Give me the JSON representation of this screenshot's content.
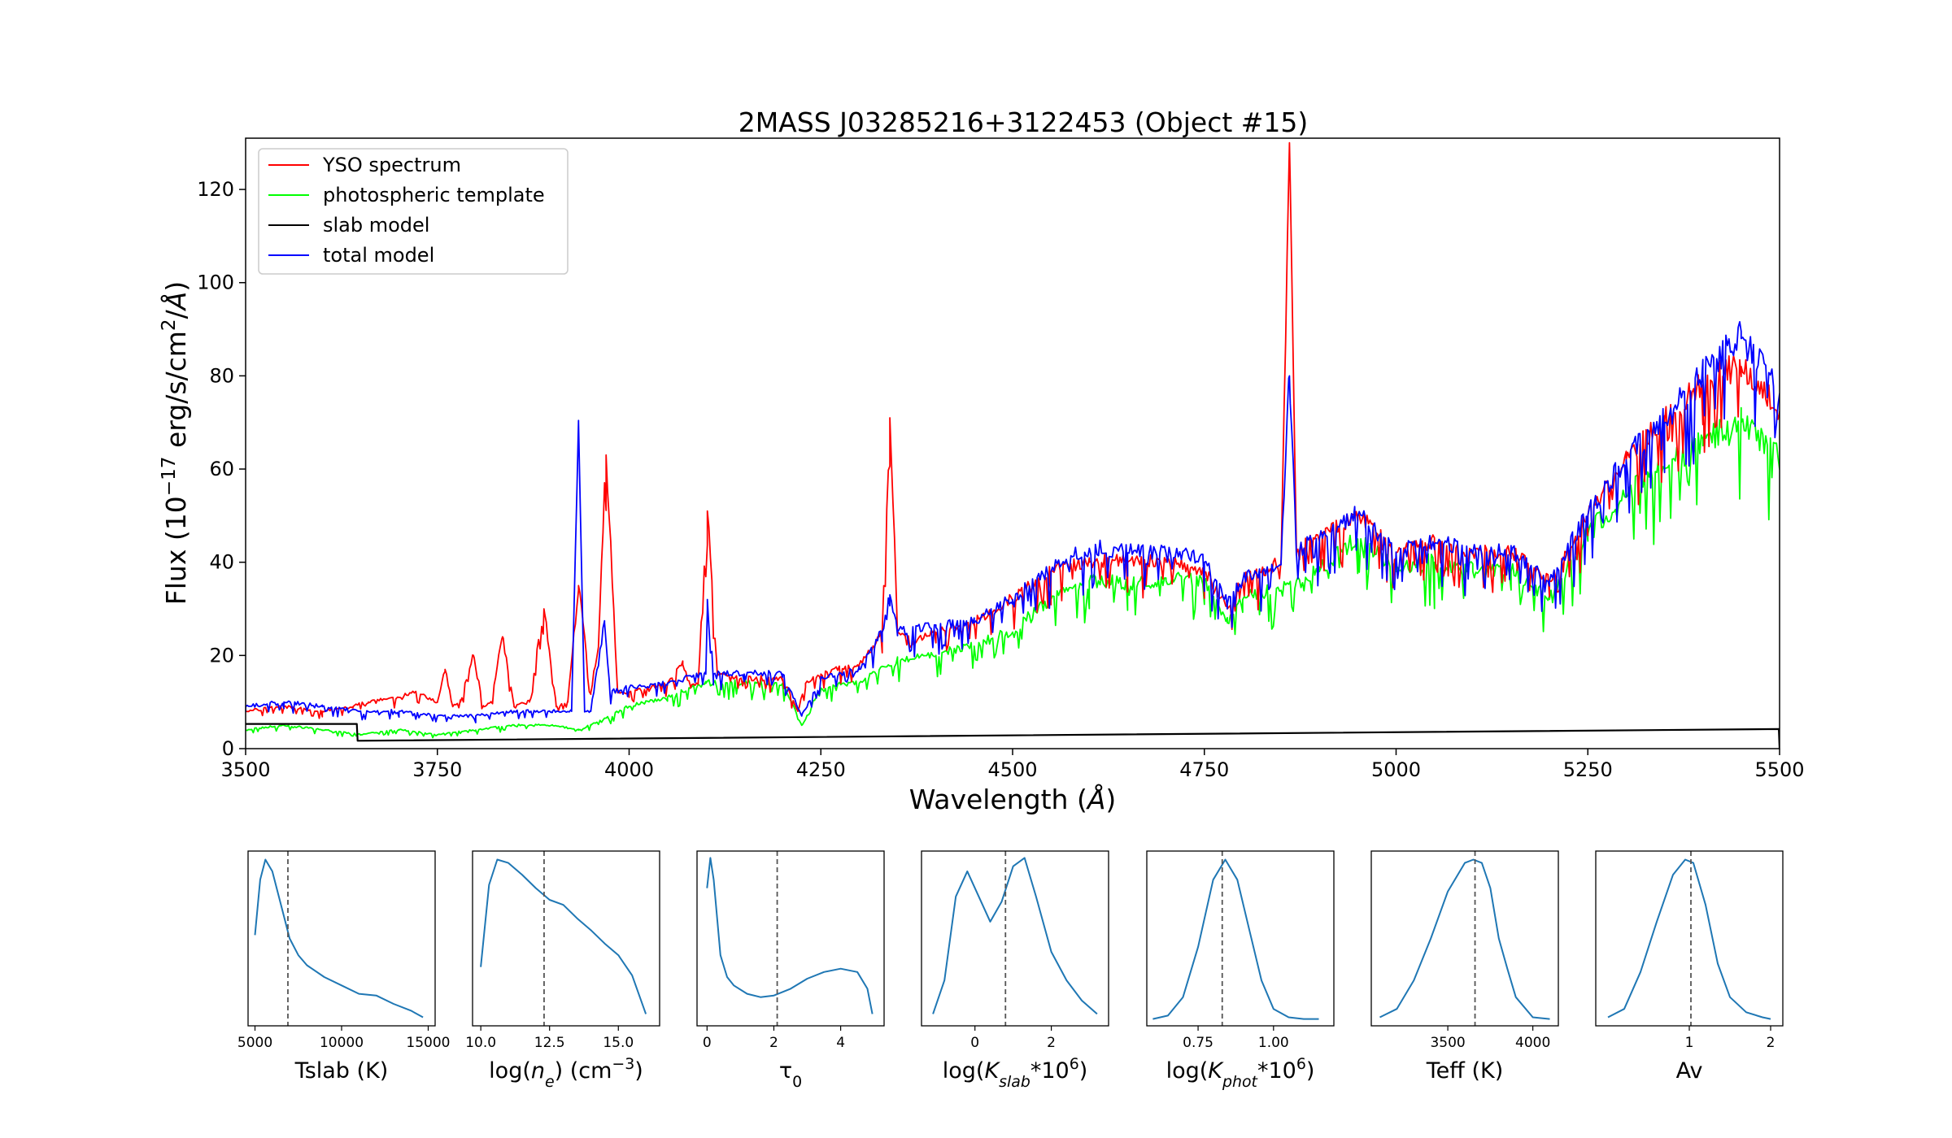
{
  "chart_data": [
    {
      "type": "line",
      "title": "2MASS J03285216+3122453 (Object #15)",
      "xlabel": "Wavelength (Å)",
      "ylabel": "Flux (10−17 erg/s/cm2/Å)",
      "xlim": [
        3500,
        5500
      ],
      "ylim": [
        0,
        131
      ],
      "xticks": [
        "3500",
        "3750",
        "4000",
        "4250",
        "4500",
        "4750",
        "5000",
        "5250",
        "5500"
      ],
      "yticks": [
        "0",
        "20",
        "40",
        "60",
        "80",
        "100",
        "120"
      ],
      "legend": "upper-left",
      "grid": false,
      "colors": {
        "yso": "#ff0000",
        "photosphere": "#00ff00",
        "slab": "#000000",
        "total": "#0000ff"
      },
      "series": [
        {
          "name": "YSO spectrum",
          "key": "yso",
          "x": [
            3500,
            3550,
            3600,
            3640,
            3660,
            3700,
            3720,
            3750,
            3760,
            3770,
            3780,
            3797,
            3810,
            3820,
            3835,
            3850,
            3870,
            3889,
            3905,
            3920,
            3934,
            3950,
            3960,
            3970,
            3985,
            4000,
            4050,
            4070,
            4080,
            4090,
            4102,
            4115,
            4150,
            4200,
            4220,
            4230,
            4250,
            4300,
            4320,
            4330,
            4340,
            4350,
            4370,
            4400,
            4450,
            4500,
            4550,
            4600,
            4650,
            4700,
            4750,
            4780,
            4800,
            4830,
            4850,
            4861,
            4870,
            4900,
            4950,
            5000,
            5050,
            5100,
            5150,
            5200,
            5250,
            5300,
            5350,
            5400,
            5450,
            5500
          ],
          "y": [
            8,
            9,
            8,
            9,
            10,
            11,
            12,
            10,
            17,
            9,
            10,
            20,
            9,
            10,
            24,
            9,
            10,
            30,
            9,
            10,
            35,
            12,
            22,
            63,
            12,
            12,
            14,
            18,
            13,
            14,
            51,
            16,
            15,
            15,
            8,
            14,
            16,
            18,
            22,
            25,
            71,
            25,
            23,
            25,
            27,
            32,
            38,
            40,
            40,
            40,
            38,
            30,
            36,
            38,
            40,
            130,
            42,
            45,
            50,
            42,
            44,
            42,
            42,
            36,
            50,
            62,
            70,
            78,
            82,
            72
          ]
        },
        {
          "name": "photospheric template",
          "key": "photosphere",
          "x": [
            3500,
            3550,
            3600,
            3650,
            3700,
            3750,
            3800,
            3850,
            3900,
            3934,
            3950,
            4000,
            4050,
            4100,
            4150,
            4200,
            4225,
            4250,
            4300,
            4350,
            4400,
            4450,
            4500,
            4550,
            4600,
            4650,
            4700,
            4750,
            4780,
            4800,
            4850,
            4900,
            4950,
            5000,
            5050,
            5100,
            5150,
            5200,
            5250,
            5300,
            5350,
            5400,
            5450,
            5500
          ],
          "y": [
            4,
            5,
            4,
            3,
            4,
            3,
            4,
            5,
            5,
            4,
            5,
            9,
            11,
            14,
            14,
            14,
            5,
            13,
            14,
            19,
            20,
            22,
            25,
            32,
            36,
            35,
            36,
            36,
            27,
            32,
            34,
            38,
            45,
            38,
            40,
            38,
            38,
            32,
            46,
            54,
            60,
            65,
            70,
            62
          ]
        },
        {
          "name": "slab model",
          "key": "slab",
          "x": [
            3500,
            3645,
            3646,
            5499,
            5500
          ],
          "y": [
            5.3,
            5.3,
            1.7,
            4.2,
            0
          ]
        },
        {
          "name": "total model",
          "key": "total",
          "x": [
            3500,
            3550,
            3600,
            3650,
            3700,
            3750,
            3800,
            3850,
            3900,
            3925,
            3934,
            3942,
            3950,
            3968,
            3975,
            4000,
            4050,
            4100,
            4102,
            4110,
            4150,
            4200,
            4225,
            4250,
            4300,
            4330,
            4340,
            4350,
            4400,
            4450,
            4500,
            4550,
            4600,
            4650,
            4700,
            4750,
            4780,
            4800,
            4850,
            4861,
            4870,
            4900,
            4950,
            5000,
            5050,
            5100,
            5150,
            5200,
            5250,
            5300,
            5350,
            5400,
            5450,
            5500
          ],
          "y": [
            9,
            10,
            9,
            8,
            8,
            7,
            7,
            8,
            8,
            8,
            70,
            8,
            8,
            27,
            12,
            13,
            14,
            16,
            32,
            16,
            16,
            16,
            7,
            15,
            17,
            25,
            33,
            25,
            26,
            27,
            32,
            38,
            43,
            42,
            42,
            40,
            31,
            36,
            40,
            80,
            42,
            45,
            50,
            42,
            44,
            42,
            42,
            36,
            50,
            62,
            70,
            80,
            88,
            75
          ]
        }
      ]
    },
    {
      "type": "line",
      "xlabel": "Tslab (K)",
      "xlim": [
        4600,
        15400
      ],
      "xticks": [
        5000,
        10000,
        15000
      ],
      "xtick_labels": [
        "5000",
        "10000",
        "15000"
      ],
      "median": 6900,
      "x": [
        5000,
        5300,
        5600,
        6000,
        6500,
        7000,
        7500,
        8000,
        9000,
        10000,
        11000,
        12000,
        13000,
        14000,
        14700
      ],
      "y": [
        0.52,
        0.85,
        0.97,
        0.9,
        0.7,
        0.5,
        0.4,
        0.34,
        0.27,
        0.22,
        0.17,
        0.16,
        0.11,
        0.07,
        0.03
      ]
    },
    {
      "type": "line",
      "xlabel": "log(ne) (cm−3)",
      "xlim": [
        9.7,
        16.5
      ],
      "xticks": [
        10,
        12.5,
        15
      ],
      "xtick_labels": [
        "10.0",
        "12.5",
        "15.0"
      ],
      "median": 12.3,
      "x": [
        10.0,
        10.3,
        10.6,
        11.0,
        11.5,
        12.0,
        12.5,
        13.0,
        13.5,
        14.0,
        14.5,
        15.0,
        15.5,
        16.0
      ],
      "y": [
        0.33,
        0.82,
        0.97,
        0.95,
        0.88,
        0.8,
        0.73,
        0.7,
        0.62,
        0.55,
        0.47,
        0.4,
        0.28,
        0.05
      ]
    },
    {
      "type": "line",
      "xlabel": "τ0",
      "xlim": [
        -0.3,
        5.3
      ],
      "xticks": [
        0,
        2,
        4
      ],
      "xtick_labels": [
        "0",
        "2",
        "4"
      ],
      "median": 2.1,
      "x": [
        0.0,
        0.1,
        0.2,
        0.4,
        0.6,
        0.8,
        1.2,
        1.6,
        2.0,
        2.5,
        3.0,
        3.5,
        4.0,
        4.5,
        4.8,
        4.95
      ],
      "y": [
        0.8,
        0.98,
        0.85,
        0.4,
        0.27,
        0.22,
        0.17,
        0.15,
        0.16,
        0.2,
        0.26,
        0.3,
        0.32,
        0.3,
        0.2,
        0.05
      ]
    },
    {
      "type": "line",
      "xlabel": "log(Kslab*106)",
      "xlim": [
        -1.4,
        3.5
      ],
      "xticks": [
        0,
        2
      ],
      "xtick_labels": [
        "0",
        "2"
      ],
      "median": 0.8,
      "x": [
        -1.1,
        -0.8,
        -0.5,
        -0.2,
        0.1,
        0.4,
        0.7,
        1.0,
        1.3,
        1.6,
        2.0,
        2.4,
        2.8,
        3.2
      ],
      "y": [
        0.05,
        0.25,
        0.75,
        0.9,
        0.75,
        0.6,
        0.72,
        0.93,
        0.98,
        0.75,
        0.42,
        0.25,
        0.13,
        0.05
      ]
    },
    {
      "type": "line",
      "xlabel": "log(Kphot*106)",
      "xlim": [
        0.58,
        1.2
      ],
      "xticks": [
        0.75,
        1.0
      ],
      "xtick_labels": [
        "0.75",
        "1.00"
      ],
      "median": 0.83,
      "x": [
        0.6,
        0.65,
        0.7,
        0.75,
        0.8,
        0.84,
        0.88,
        0.92,
        0.96,
        1.0,
        1.05,
        1.1,
        1.15
      ],
      "y": [
        0.02,
        0.04,
        0.15,
        0.45,
        0.85,
        0.97,
        0.85,
        0.55,
        0.25,
        0.08,
        0.03,
        0.02,
        0.02
      ]
    },
    {
      "type": "line",
      "xlabel": "Teff (K)",
      "xlim": [
        3050,
        4150
      ],
      "xticks": [
        3500,
        4000
      ],
      "xtick_labels": [
        "3500",
        "4000"
      ],
      "median": 3660,
      "x": [
        3100,
        3200,
        3300,
        3400,
        3500,
        3600,
        3650,
        3700,
        3750,
        3800,
        3850,
        3900,
        4000,
        4100
      ],
      "y": [
        0.03,
        0.08,
        0.25,
        0.5,
        0.78,
        0.95,
        0.97,
        0.95,
        0.8,
        0.5,
        0.32,
        0.15,
        0.03,
        0.02
      ]
    },
    {
      "type": "line",
      "xlabel": "Av",
      "xlim": [
        -0.15,
        2.15
      ],
      "xticks": [
        1,
        2
      ],
      "xtick_labels": [
        "1",
        "2"
      ],
      "median": 1.02,
      "x": [
        0.0,
        0.2,
        0.4,
        0.6,
        0.8,
        0.95,
        1.05,
        1.2,
        1.35,
        1.5,
        1.7,
        1.9,
        2.0
      ],
      "y": [
        0.03,
        0.08,
        0.3,
        0.6,
        0.88,
        0.97,
        0.95,
        0.7,
        0.35,
        0.15,
        0.06,
        0.03,
        0.02
      ]
    }
  ]
}
